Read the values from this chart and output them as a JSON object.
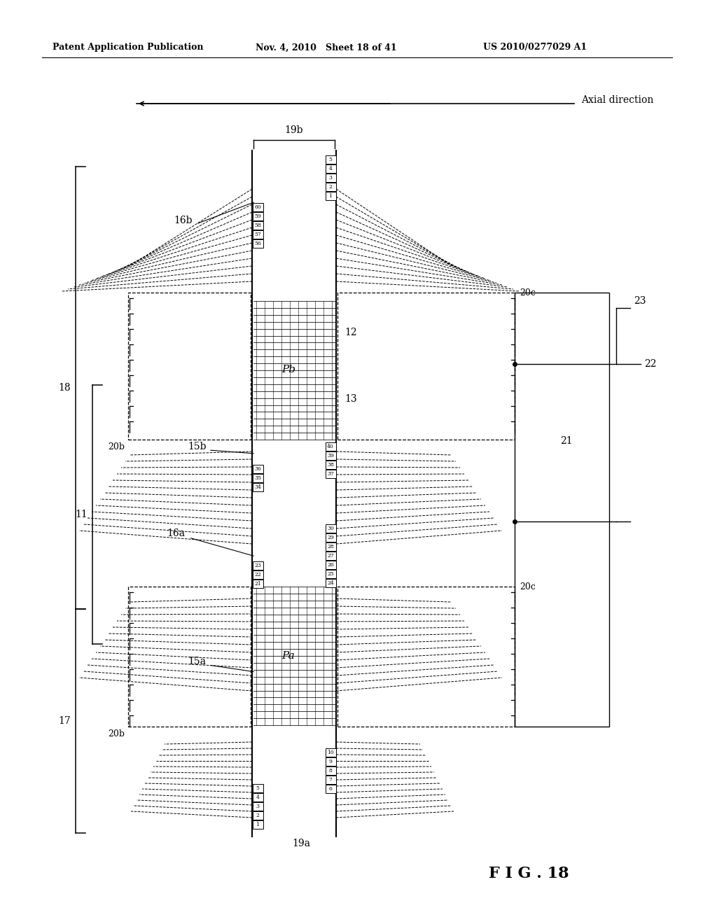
{
  "bg_color": "#ffffff",
  "header_left": "Patent Application Publication",
  "header_mid": "Nov. 4, 2010   Sheet 18 of 41",
  "header_right": "US 2010/0277029 A1",
  "fig_label": "F I G . 18",
  "axial_label": "Axial direction",
  "label_19b": "19b",
  "label_19a": "19a",
  "label_16b": "16b",
  "label_16a": "16a",
  "label_15b": "15b",
  "label_15a": "15a",
  "label_11": "11",
  "label_12": "12",
  "label_13": "13",
  "label_17": "17",
  "label_18": "18",
  "label_20b_top": "20b",
  "label_20b_bot": "20b",
  "label_20c_top": "20c",
  "label_20c_bot": "20c",
  "label_Pa": "Pa",
  "label_Pb": "Pb",
  "label_21": "21",
  "label_22": "22",
  "label_23": "23"
}
